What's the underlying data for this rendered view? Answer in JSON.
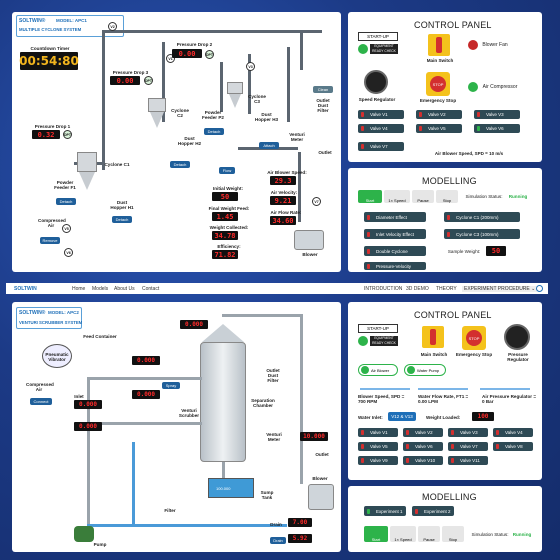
{
  "top": {
    "brand": "SOLTWIN®",
    "model": "MODEL: APC1",
    "system": "MULTIPLE CYCLONE SYSTEM",
    "timer_label": "Countdown Timer",
    "timer_value": "00:54:80",
    "pressure_drop1_label": "Pressure Drop 1",
    "pressure_drop1_value": "0.32",
    "pressure_drop2_label": "Pressure Drop 2",
    "pressure_drop2_value": "0.00",
    "pressure_drop3_label": "Pressure Drop 3",
    "pressure_drop3_value": "0.00",
    "cyclone1": "Cyclone C1",
    "cyclone2": "Cyclone C2",
    "cyclone3": "Cyclone C3",
    "hopper1": "Dust Hopper H1",
    "hopper2": "Dust Hopper H2",
    "hopper3": "Dust Hopper H3",
    "feeder1": "Powder Feeder F1",
    "feeder2": "Powder Feeder P2",
    "compressed_air": "Compressed Air",
    "remove": "Remove",
    "detach": "Detach",
    "attach": "Attach",
    "clean": "Clean",
    "flow": "Flow",
    "venturi": "Venturi Meter",
    "outlet": "Outlet",
    "outlet_dust_filter": "Outlet Dust Filter",
    "blower": "Blower",
    "initial_weight_label": "Initial Weight:",
    "initial_weight": "50",
    "final_weight_label": "Final Weight Feed:",
    "final_weight": "1.45",
    "weight_collected_label": "Weight Collected:",
    "weight_collected": "34.78",
    "efficiency_label": "Efficiency:",
    "efficiency": "71.82",
    "air_blower_speed_label": "Air Blower Speed:",
    "air_blower_speed": "29.3",
    "air_velocity_label": "Air Velocity:",
    "air_velocity": "9.21",
    "air_flow_label": "Air Flow Rate:",
    "air_flow": "34.60",
    "cp": {
      "title": "CONTROL PANEL",
      "start_up": "START-UP",
      "equip_ready": "EQUIPMENT READY CHECK",
      "main_switch": "Main Switch",
      "blower_fan": "Blower Fan",
      "air_compressor": "Air Compressor",
      "speed_regulator": "Speed Regulator",
      "emergency_stop": "Emergency Stop",
      "stop": "STOP",
      "valves": [
        "Valve V1",
        "Valve V2",
        "Valve V3",
        "Valve V4",
        "Valve V5",
        "Valve V6",
        "Valve V7"
      ],
      "blower_speed_text": "Air Blower Speed, SPD = 10 m/s"
    },
    "modelling": {
      "title": "MODELLING",
      "start": "Start",
      "speed": "1× Speed",
      "pause": "Pause",
      "stop": "Stop",
      "sim_status_label": "Simulation Status:",
      "sim_status": "Running",
      "items": [
        "Diameter Effect",
        "Cyclone C1 (200mm)",
        "Inlet Velocity Effect",
        "Cyclone C3 (100mm)",
        "Double Cyclone"
      ],
      "sample_weight_label": "Sample Weight:",
      "sample_weight": "50",
      "pressure_velocity": "Pressure-Velocity"
    }
  },
  "nav": {
    "logo": "SOLTWIN",
    "links": [
      "Home",
      "Models",
      "About Us",
      "Contact"
    ],
    "right": [
      "INTRODUCTION",
      "3D DEMO",
      "THEORY",
      "EXPERIMENT PROCEDURE ⌄"
    ]
  },
  "bottom": {
    "brand": "SOLTWIN®",
    "model": "MODEL: APC2",
    "system": "VENTURI SCRUBBER SYSTEM",
    "feed_container": "Feed Container",
    "pneumatic_vibrator": "Pneumatic Vibrator",
    "compressed_air": "Compressed Air",
    "connect": "Connect",
    "inlet": "Inlet",
    "spray": "Spray",
    "venturi_scrubber": "Venturi Scrubber",
    "separation_chamber": "Separation Chamber",
    "outlet_dust_filter": "Outlet Dust Filter",
    "venturi_meter": "Venturi Meter",
    "outlet": "Outlet",
    "blower": "Blower",
    "sump_tank": "Sump Tank",
    "filter": "Filter",
    "drain": "Drain",
    "pump": "Pump",
    "sump_value": "100.000",
    "displays": [
      "0.000",
      "0.000",
      "0.000",
      "0.000",
      "0.000",
      "10.000",
      "7.00",
      "5.92"
    ],
    "cp": {
      "title": "CONTROL PANEL",
      "start_up": "START-UP",
      "equip_ready": "EQUIPMENT READY CHECK",
      "main_switch": "Main Switch",
      "emergency_stop": "Emergency Stop",
      "stop": "STOP",
      "pressure_regulator": "Pressure Regulator",
      "air_blower": "Air Blower",
      "water_pump": "Water Pump",
      "blower_speed": "Blower Speed, SPD = 700 RPM",
      "water_flow": "Water Flow Rate, FT1 = 0.00 LPM",
      "air_pressure": "Air Pressure Regulator = 0 Bar",
      "water_inlet_label": "Water Inlet:",
      "water_inlet_value": "V12 & V13",
      "weight_loaded_label": "Weight Loaded:",
      "weight_loaded": "100",
      "valves": [
        "Valve V1",
        "Valve V2",
        "Valve V3",
        "Valve V4",
        "Valve V5",
        "Valve V6",
        "Valve V7",
        "Valve V8",
        "Valve V9",
        "Valve V10",
        "Valve V11"
      ]
    },
    "modelling": {
      "title": "MODELLING",
      "experiment1": "Experiment 1",
      "experiment2": "Experiment 2",
      "start": "Start",
      "speed": "1× Speed",
      "pause": "Pause",
      "stop": "Stop",
      "sim_status_label": "Simulation Status:",
      "sim_status": "Running"
    }
  }
}
